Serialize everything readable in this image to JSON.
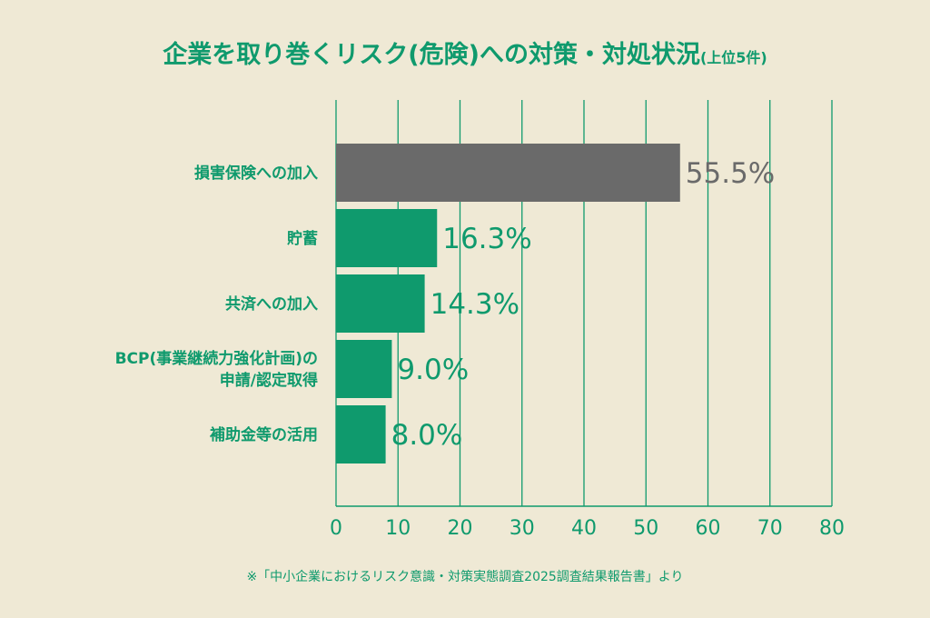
{
  "colors": {
    "background": "#efe9d5",
    "accent": "#0f9a6d",
    "highlight": "#6a6a6a"
  },
  "chart_data": {
    "type": "bar",
    "orientation": "horizontal",
    "title": "企業を取り巻くリスク(危険)への対策・対処状況",
    "title_suffix": "(上位5件)",
    "categories": [
      "損害保険への加入",
      "貯蓄",
      "共済への加入",
      "BCP(事業継続力強化計画)の|申請/認定取得",
      "補助金等の活用"
    ],
    "values": [
      55.5,
      16.3,
      14.3,
      9.0,
      8.0
    ],
    "value_labels": [
      "55.5%",
      "16.3%",
      "14.3%",
      "9.0%",
      "8.0%"
    ],
    "highlight_index": 0,
    "xlim": [
      0,
      80
    ],
    "xticks": [
      0,
      10,
      20,
      30,
      40,
      50,
      60,
      70,
      80
    ],
    "grid": true,
    "xlabel": "",
    "ylabel": ""
  },
  "footnote": "※「中小企業におけるリスク意識・対策実態調査2025調査結果報告書」より"
}
